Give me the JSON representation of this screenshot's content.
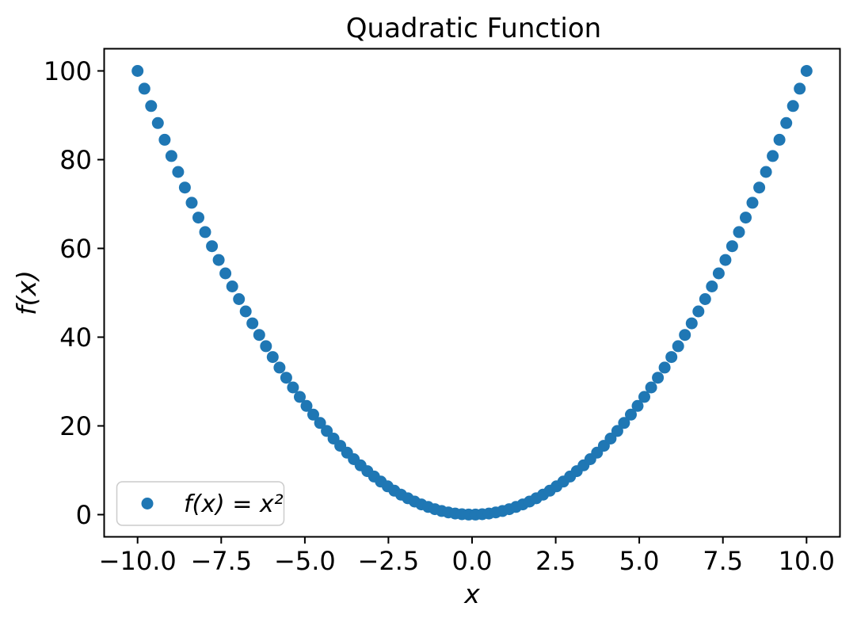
{
  "figure": {
    "background": "#ffffff",
    "text_color": "#000000",
    "spine_color": "#000000",
    "legend_border_color": "#cccccc"
  },
  "chart_data": {
    "type": "scatter",
    "title": "Quadratic Function",
    "xlabel": "x",
    "ylabel": "f(x)",
    "xlim": [
      -11,
      11
    ],
    "ylim": [
      -5,
      105
    ],
    "xticks": [
      -10,
      -7.5,
      -5,
      -2.5,
      0,
      2.5,
      5,
      7.5,
      10
    ],
    "xtick_labels": [
      "−10.0",
      "−7.5",
      "−5.0",
      "−2.5",
      "0.0",
      "2.5",
      "5.0",
      "7.5",
      "10.0"
    ],
    "yticks": [
      0,
      20,
      40,
      60,
      80,
      100
    ],
    "ytick_labels": [
      "0",
      "20",
      "40",
      "60",
      "80",
      "100"
    ],
    "grid": false,
    "legend": {
      "position": "lower left",
      "entries": [
        {
          "label": "f(x) = x²",
          "marker": "circle",
          "color": "#1f77b4"
        }
      ]
    },
    "series": [
      {
        "name": "f(x) = x²",
        "marker": "circle",
        "color": "#1f77b4",
        "x": [
          -10.0,
          -9.798,
          -9.596,
          -9.3939,
          -9.1919,
          -8.9899,
          -8.7879,
          -8.5859,
          -8.3838,
          -8.1818,
          -7.9798,
          -7.7778,
          -7.5758,
          -7.3737,
          -7.1717,
          -6.9697,
          -6.7677,
          -6.5657,
          -6.3636,
          -6.1616,
          -5.9596,
          -5.7576,
          -5.5556,
          -5.3535,
          -5.1515,
          -4.9495,
          -4.7475,
          -4.5455,
          -4.3434,
          -4.1414,
          -3.9394,
          -3.7374,
          -3.5354,
          -3.3333,
          -3.1313,
          -2.9293,
          -2.7273,
          -2.5253,
          -2.3232,
          -2.1212,
          -1.9192,
          -1.7172,
          -1.5152,
          -1.3131,
          -1.1111,
          -0.9091,
          -0.7071,
          -0.5051,
          -0.303,
          -0.101,
          0.101,
          0.303,
          0.5051,
          0.7071,
          0.9091,
          1.1111,
          1.3131,
          1.5152,
          1.7172,
          1.9192,
          2.1212,
          2.3232,
          2.5253,
          2.7273,
          2.9293,
          3.1313,
          3.3333,
          3.5354,
          3.7374,
          3.9394,
          4.1414,
          4.3434,
          4.5455,
          4.7475,
          4.9495,
          5.1515,
          5.3535,
          5.5556,
          5.7576,
          5.9596,
          6.1616,
          6.3636,
          6.5657,
          6.7677,
          6.9697,
          7.1717,
          7.3737,
          7.5758,
          7.7778,
          7.9798,
          8.1818,
          8.3838,
          8.5859,
          8.7879,
          8.9899,
          9.1919,
          9.3939,
          9.596,
          9.798,
          10.0
        ],
        "y": [
          100.0,
          96.0,
          92.082,
          88.246,
          84.491,
          80.818,
          77.227,
          73.717,
          70.289,
          66.942,
          63.677,
          60.494,
          57.392,
          54.372,
          51.434,
          48.577,
          45.801,
          43.108,
          40.496,
          37.966,
          35.517,
          33.15,
          30.864,
          28.66,
          26.538,
          24.498,
          22.539,
          20.661,
          18.865,
          17.151,
          15.519,
          13.968,
          12.499,
          11.111,
          9.805,
          8.581,
          7.438,
          6.377,
          5.397,
          4.5,
          3.683,
          2.949,
          2.296,
          1.724,
          1.235,
          0.826,
          0.5,
          0.255,
          0.092,
          0.01,
          0.01,
          0.092,
          0.255,
          0.5,
          0.826,
          1.235,
          1.724,
          2.296,
          2.949,
          3.683,
          4.5,
          5.397,
          6.377,
          7.438,
          8.581,
          9.805,
          11.111,
          12.499,
          13.968,
          15.519,
          17.151,
          18.865,
          20.661,
          22.539,
          24.498,
          26.538,
          28.66,
          30.864,
          33.15,
          35.517,
          37.966,
          40.496,
          43.108,
          45.801,
          48.577,
          51.434,
          54.372,
          57.392,
          60.494,
          63.677,
          66.942,
          70.289,
          73.717,
          77.227,
          80.818,
          84.491,
          88.246,
          92.082,
          96.0,
          100.0
        ]
      }
    ]
  }
}
